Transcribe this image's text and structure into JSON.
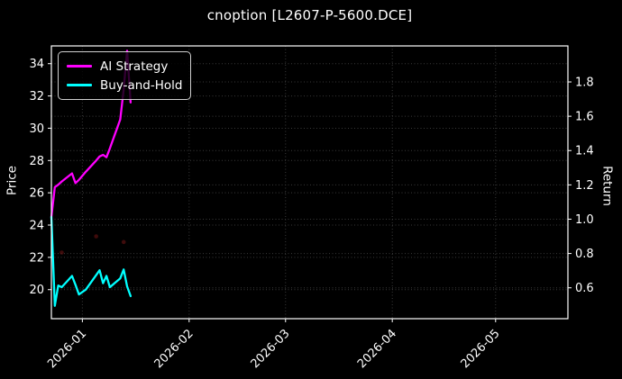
{
  "title": "cnoption [L2607-P-5600.DCE]",
  "legend": {
    "entries": [
      {
        "label": "AI Strategy",
        "color": "#ff00ff"
      },
      {
        "label": "Buy-and-Hold",
        "color": "#00ffff"
      }
    ]
  },
  "chart_data": {
    "type": "line",
    "title": "cnoption [L2607-P-5600.DCE]",
    "x": [
      "2025-12-23",
      "2025-12-24",
      "2025-12-25",
      "2025-12-26",
      "2025-12-29",
      "2025-12-30",
      "2025-12-31",
      "2026-01-02",
      "2026-01-05",
      "2026-01-06",
      "2026-01-07",
      "2026-01-08",
      "2026-01-09",
      "2026-01-12",
      "2026-01-13",
      "2026-01-14",
      "2026-01-15"
    ],
    "series": [
      {
        "name": "AI Strategy",
        "color": "#ff00ff",
        "yaxis": "price",
        "values": [
          24.5,
          26.35,
          26.5,
          26.7,
          27.2,
          26.6,
          26.8,
          27.3,
          28.0,
          28.25,
          28.35,
          28.2,
          28.75,
          30.55,
          32.4,
          34.8,
          31.6
        ]
      },
      {
        "name": "Buy-and-Hold",
        "color": "#00ffff",
        "yaxis": "price",
        "values": [
          24.5,
          19.0,
          20.25,
          20.15,
          20.85,
          20.3,
          19.7,
          20.0,
          20.9,
          21.2,
          20.4,
          20.85,
          20.15,
          20.7,
          21.25,
          20.2,
          19.6
        ]
      }
    ],
    "markers": {
      "name": "faint-trade-dots",
      "color": "#8b1a1a",
      "opacity": 0.45,
      "points": [
        [
          "2025-12-26",
          22.3
        ],
        [
          "2026-01-05",
          23.3
        ],
        [
          "2026-01-13",
          22.95
        ]
      ]
    },
    "axes": {
      "price": {
        "label": "Price",
        "side": "left",
        "ticks": [
          "20",
          "22",
          "24",
          "26",
          "28",
          "30",
          "32",
          "34"
        ],
        "lim": [
          18.2,
          35.1
        ]
      },
      "return": {
        "label": "Return",
        "side": "right",
        "ticks": [
          "0.6",
          "0.8",
          "1.0",
          "1.2",
          "1.4",
          "1.6",
          "1.8"
        ],
        "lim": [
          0.42,
          2.01
        ]
      },
      "x": {
        "lim": [
          "2025-12-23",
          "2026-05-22"
        ],
        "ticks": [
          [
            "2026-01",
            "2026-01-01"
          ],
          [
            "2026-02",
            "2026-02-01"
          ],
          [
            "2026-03",
            "2026-03-01"
          ],
          [
            "2026-04",
            "2026-04-01"
          ],
          [
            "2026-05",
            "2026-05-01"
          ]
        ]
      }
    },
    "grid": true,
    "legend_position": "upper-left",
    "style": {
      "background": "#000000",
      "text": "#ffffff",
      "grid": "#3a3a3a",
      "spine": "#ffffff"
    }
  }
}
